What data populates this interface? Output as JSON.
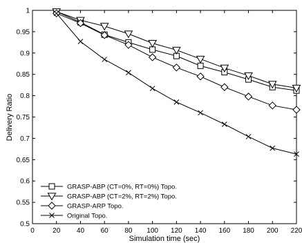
{
  "chart_data": {
    "type": "line",
    "title": "",
    "xlabel": "Simulation time (sec)",
    "ylabel": "Delivery Ratio",
    "xlim": [
      0,
      220
    ],
    "ylim": [
      0.5,
      1
    ],
    "x_ticks": [
      "0",
      "20",
      "40",
      "60",
      "80",
      "100",
      "120",
      "140",
      "160",
      "180",
      "200",
      "220"
    ],
    "y_ticks": [
      "0.5",
      "0.55",
      "0.6",
      "0.65",
      "0.7",
      "0.75",
      "0.8",
      "0.85",
      "0.9",
      "0.95",
      "1"
    ],
    "grid": false,
    "legend_position": "bottom-left",
    "line_color": "#000000",
    "series": [
      {
        "name": "GRASP-ABP (CT=0%, RT=0%) Topo.",
        "marker": "square",
        "x": [
          20,
          40,
          60,
          80,
          100,
          120,
          140,
          160,
          180,
          200,
          220
        ],
        "values": [
          0.997,
          0.972,
          0.943,
          0.925,
          0.908,
          0.893,
          0.87,
          0.855,
          0.838,
          0.82,
          0.812
        ]
      },
      {
        "name": "GRASP-ABP (CT=2%, RT=2%) Topo.",
        "marker": "triangle-down",
        "x": [
          20,
          40,
          60,
          80,
          100,
          120,
          140,
          160,
          180,
          200,
          220
        ],
        "values": [
          0.997,
          0.977,
          0.963,
          0.945,
          0.923,
          0.907,
          0.886,
          0.865,
          0.847,
          0.827,
          0.818
        ]
      },
      {
        "name": "GRASP-ARP Topo.",
        "marker": "diamond",
        "x": [
          20,
          40,
          60,
          80,
          100,
          120,
          140,
          160,
          180,
          200,
          220
        ],
        "values": [
          0.993,
          0.97,
          0.942,
          0.919,
          0.89,
          0.866,
          0.845,
          0.82,
          0.798,
          0.777,
          0.767
        ]
      },
      {
        "name": "Original Topo.",
        "marker": "x",
        "x": [
          20,
          40,
          60,
          80,
          100,
          120,
          140,
          160,
          180,
          200,
          220
        ],
        "values": [
          0.993,
          0.927,
          0.885,
          0.854,
          0.817,
          0.785,
          0.76,
          0.733,
          0.704,
          0.677,
          0.663
        ]
      }
    ]
  }
}
